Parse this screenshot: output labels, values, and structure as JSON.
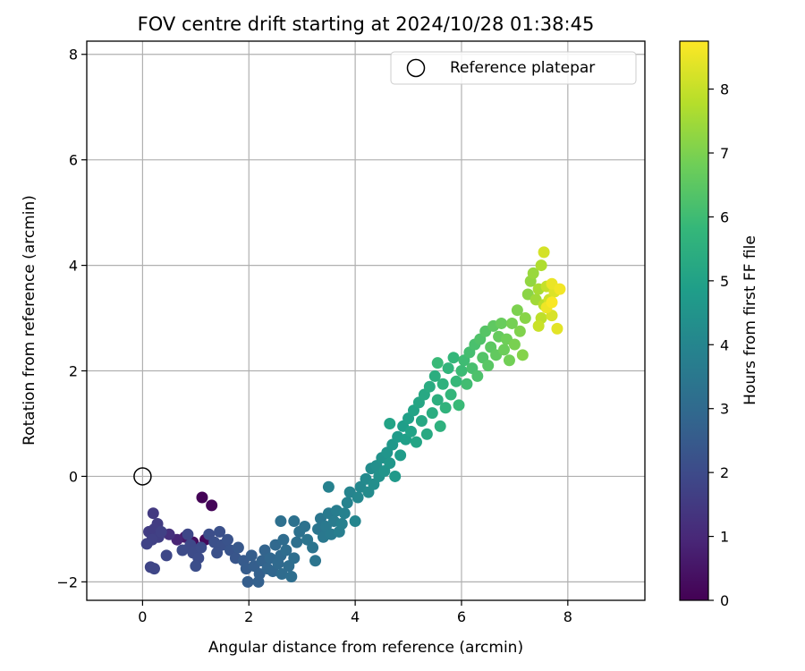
{
  "chart_data": {
    "type": "scatter",
    "title": "FOV centre drift starting at 2024/10/28 01:38:45",
    "xlabel": "Angular distance from reference (arcmin)",
    "ylabel": "Rotation from reference (arcmin)",
    "xlim": [
      -1.05,
      9.45
    ],
    "ylim": [
      -2.35,
      8.25
    ],
    "xticks": [
      0,
      2,
      4,
      6,
      8
    ],
    "yticks": [
      -2,
      0,
      2,
      4,
      6,
      8
    ],
    "grid": true,
    "legend": {
      "position": "top-right",
      "entries": [
        {
          "marker": "open-circle",
          "label": "Reference platepar"
        }
      ]
    },
    "reference_point": {
      "x": 0,
      "y": 0
    },
    "colorbar": {
      "label": "Hours from first FF file",
      "colormap": "viridis",
      "range": [
        0,
        8.75
      ],
      "ticks": [
        0,
        1,
        2,
        3,
        4,
        5,
        6,
        7,
        8
      ],
      "colors": [
        "#440154",
        "#482878",
        "#3e4989",
        "#31688e",
        "#26828e",
        "#1f9e89",
        "#35b779",
        "#6ece58",
        "#b5de2b",
        "#fde725"
      ]
    },
    "points": [
      {
        "x": 1.12,
        "y": -0.4,
        "c": 0.05
      },
      {
        "x": 1.3,
        "y": -0.55,
        "c": 0.1
      },
      {
        "x": 1.18,
        "y": -1.2,
        "c": 0.2
      },
      {
        "x": 0.95,
        "y": -1.25,
        "c": 0.3
      },
      {
        "x": 0.8,
        "y": -1.15,
        "c": 0.6
      },
      {
        "x": 0.65,
        "y": -1.2,
        "c": 0.9
      },
      {
        "x": 0.5,
        "y": -1.1,
        "c": 1.2
      },
      {
        "x": 0.2,
        "y": -0.7,
        "c": 1.5
      },
      {
        "x": 0.28,
        "y": -0.9,
        "c": 1.55
      },
      {
        "x": 0.12,
        "y": -1.05,
        "c": 1.6
      },
      {
        "x": 0.22,
        "y": -1.0,
        "c": 1.6
      },
      {
        "x": 0.3,
        "y": -1.15,
        "c": 1.65
      },
      {
        "x": 0.18,
        "y": -1.2,
        "c": 1.7
      },
      {
        "x": 0.35,
        "y": -1.05,
        "c": 1.7
      },
      {
        "x": 0.08,
        "y": -1.28,
        "c": 1.75
      },
      {
        "x": 0.15,
        "y": -1.72,
        "c": 1.8
      },
      {
        "x": 0.22,
        "y": -1.75,
        "c": 1.85
      },
      {
        "x": 0.45,
        "y": -1.5,
        "c": 1.9
      },
      {
        "x": 0.85,
        "y": -1.1,
        "c": 1.9
      },
      {
        "x": 0.9,
        "y": -1.3,
        "c": 1.95
      },
      {
        "x": 0.75,
        "y": -1.4,
        "c": 2.0
      },
      {
        "x": 0.95,
        "y": -1.45,
        "c": 2.0
      },
      {
        "x": 1.05,
        "y": -1.55,
        "c": 2.05
      },
      {
        "x": 1.1,
        "y": -1.35,
        "c": 2.05
      },
      {
        "x": 1.0,
        "y": -1.7,
        "c": 2.1
      },
      {
        "x": 1.25,
        "y": -1.1,
        "c": 2.1
      },
      {
        "x": 1.35,
        "y": -1.25,
        "c": 2.15
      },
      {
        "x": 1.45,
        "y": -1.05,
        "c": 2.15
      },
      {
        "x": 1.5,
        "y": -1.3,
        "c": 2.2
      },
      {
        "x": 1.4,
        "y": -1.45,
        "c": 2.2
      },
      {
        "x": 1.6,
        "y": -1.2,
        "c": 2.25
      },
      {
        "x": 1.65,
        "y": -1.4,
        "c": 2.3
      },
      {
        "x": 1.75,
        "y": -1.55,
        "c": 2.35
      },
      {
        "x": 1.8,
        "y": -1.35,
        "c": 2.4
      },
      {
        "x": 1.9,
        "y": -1.6,
        "c": 2.5
      },
      {
        "x": 1.95,
        "y": -1.75,
        "c": 2.55
      },
      {
        "x": 1.98,
        "y": -2.0,
        "c": 2.6
      },
      {
        "x": 2.05,
        "y": -1.5,
        "c": 2.6
      },
      {
        "x": 2.1,
        "y": -1.7,
        "c": 2.65
      },
      {
        "x": 2.2,
        "y": -1.85,
        "c": 2.7
      },
      {
        "x": 2.18,
        "y": -2.0,
        "c": 2.7
      },
      {
        "x": 2.25,
        "y": -1.6,
        "c": 2.75
      },
      {
        "x": 2.3,
        "y": -1.4,
        "c": 2.8
      },
      {
        "x": 2.35,
        "y": -1.75,
        "c": 2.85
      },
      {
        "x": 2.4,
        "y": -1.55,
        "c": 2.9
      },
      {
        "x": 2.45,
        "y": -1.8,
        "c": 2.9
      },
      {
        "x": 2.5,
        "y": -1.3,
        "c": 2.95
      },
      {
        "x": 2.55,
        "y": -1.65,
        "c": 3.0
      },
      {
        "x": 2.6,
        "y": -1.5,
        "c": 3.0
      },
      {
        "x": 2.62,
        "y": -1.85,
        "c": 3.05
      },
      {
        "x": 2.65,
        "y": -1.2,
        "c": 3.05
      },
      {
        "x": 2.7,
        "y": -1.4,
        "c": 3.1
      },
      {
        "x": 2.75,
        "y": -1.7,
        "c": 3.1
      },
      {
        "x": 2.8,
        "y": -1.9,
        "c": 3.15
      },
      {
        "x": 2.85,
        "y": -1.55,
        "c": 3.15
      },
      {
        "x": 2.6,
        "y": -0.85,
        "c": 3.2
      },
      {
        "x": 2.9,
        "y": -1.25,
        "c": 3.2
      },
      {
        "x": 2.95,
        "y": -1.05,
        "c": 3.25
      },
      {
        "x": 2.85,
        "y": -0.85,
        "c": 3.25
      },
      {
        "x": 3.05,
        "y": -0.95,
        "c": 3.3
      },
      {
        "x": 3.1,
        "y": -1.2,
        "c": 3.35
      },
      {
        "x": 3.2,
        "y": -1.35,
        "c": 3.35
      },
      {
        "x": 3.25,
        "y": -1.6,
        "c": 3.4
      },
      {
        "x": 3.3,
        "y": -1.0,
        "c": 3.4
      },
      {
        "x": 3.35,
        "y": -0.8,
        "c": 3.45
      },
      {
        "x": 3.4,
        "y": -1.15,
        "c": 3.5
      },
      {
        "x": 3.45,
        "y": -0.95,
        "c": 3.55
      },
      {
        "x": 3.5,
        "y": -0.7,
        "c": 3.6
      },
      {
        "x": 3.55,
        "y": -1.1,
        "c": 3.6
      },
      {
        "x": 3.6,
        "y": -0.85,
        "c": 3.65
      },
      {
        "x": 3.65,
        "y": -0.65,
        "c": 3.7
      },
      {
        "x": 3.7,
        "y": -1.05,
        "c": 3.75
      },
      {
        "x": 3.75,
        "y": -0.9,
        "c": 3.8
      },
      {
        "x": 3.8,
        "y": -0.7,
        "c": 3.85
      },
      {
        "x": 3.5,
        "y": -0.2,
        "c": 3.85
      },
      {
        "x": 3.85,
        "y": -0.5,
        "c": 3.9
      },
      {
        "x": 3.9,
        "y": -0.3,
        "c": 3.95
      },
      {
        "x": 4.0,
        "y": -0.85,
        "c": 4.0
      },
      {
        "x": 4.05,
        "y": -0.4,
        "c": 4.05
      },
      {
        "x": 4.1,
        "y": -0.2,
        "c": 4.1
      },
      {
        "x": 4.2,
        "y": -0.05,
        "c": 4.15
      },
      {
        "x": 4.25,
        "y": -0.3,
        "c": 4.2
      },
      {
        "x": 4.3,
        "y": 0.15,
        "c": 4.25
      },
      {
        "x": 4.35,
        "y": -0.15,
        "c": 4.3
      },
      {
        "x": 4.4,
        "y": 0.2,
        "c": 4.35
      },
      {
        "x": 4.45,
        "y": 0.0,
        "c": 4.4
      },
      {
        "x": 4.5,
        "y": 0.35,
        "c": 4.45
      },
      {
        "x": 4.55,
        "y": 0.1,
        "c": 4.5
      },
      {
        "x": 4.6,
        "y": 0.45,
        "c": 4.55
      },
      {
        "x": 4.65,
        "y": 0.25,
        "c": 4.6
      },
      {
        "x": 4.7,
        "y": 0.6,
        "c": 4.65
      },
      {
        "x": 4.75,
        "y": 0.0,
        "c": 4.7
      },
      {
        "x": 4.8,
        "y": 0.75,
        "c": 4.75
      },
      {
        "x": 4.85,
        "y": 0.4,
        "c": 4.8
      },
      {
        "x": 4.9,
        "y": 0.95,
        "c": 4.85
      },
      {
        "x": 4.95,
        "y": 0.7,
        "c": 4.9
      },
      {
        "x": 5.0,
        "y": 1.1,
        "c": 4.95
      },
      {
        "x": 5.05,
        "y": 0.85,
        "c": 5.0
      },
      {
        "x": 5.1,
        "y": 1.25,
        "c": 5.05
      },
      {
        "x": 4.65,
        "y": 1.0,
        "c": 5.05
      },
      {
        "x": 5.15,
        "y": 0.65,
        "c": 5.1
      },
      {
        "x": 5.2,
        "y": 1.4,
        "c": 5.15
      },
      {
        "x": 5.25,
        "y": 1.05,
        "c": 5.2
      },
      {
        "x": 5.3,
        "y": 1.55,
        "c": 5.25
      },
      {
        "x": 5.35,
        "y": 0.8,
        "c": 5.3
      },
      {
        "x": 5.4,
        "y": 1.7,
        "c": 5.35
      },
      {
        "x": 5.45,
        "y": 1.2,
        "c": 5.4
      },
      {
        "x": 5.5,
        "y": 1.9,
        "c": 5.45
      },
      {
        "x": 5.55,
        "y": 1.45,
        "c": 5.5
      },
      {
        "x": 5.6,
        "y": 0.95,
        "c": 5.55
      },
      {
        "x": 5.65,
        "y": 1.75,
        "c": 5.6
      },
      {
        "x": 5.7,
        "y": 1.3,
        "c": 5.65
      },
      {
        "x": 5.75,
        "y": 2.05,
        "c": 5.7
      },
      {
        "x": 5.8,
        "y": 1.55,
        "c": 5.75
      },
      {
        "x": 5.85,
        "y": 2.25,
        "c": 5.8
      },
      {
        "x": 5.9,
        "y": 1.8,
        "c": 5.85
      },
      {
        "x": 5.95,
        "y": 1.35,
        "c": 5.9
      },
      {
        "x": 5.55,
        "y": 2.15,
        "c": 5.9
      },
      {
        "x": 6.0,
        "y": 2.0,
        "c": 5.95
      },
      {
        "x": 6.05,
        "y": 2.2,
        "c": 6.0
      },
      {
        "x": 6.1,
        "y": 1.75,
        "c": 6.05
      },
      {
        "x": 6.15,
        "y": 2.35,
        "c": 6.1
      },
      {
        "x": 6.2,
        "y": 2.05,
        "c": 6.15
      },
      {
        "x": 6.25,
        "y": 2.5,
        "c": 6.2
      },
      {
        "x": 6.3,
        "y": 1.9,
        "c": 6.25
      },
      {
        "x": 6.35,
        "y": 2.6,
        "c": 6.3
      },
      {
        "x": 6.4,
        "y": 2.25,
        "c": 6.35
      },
      {
        "x": 6.45,
        "y": 2.75,
        "c": 6.4
      },
      {
        "x": 6.5,
        "y": 2.1,
        "c": 6.45
      },
      {
        "x": 6.55,
        "y": 2.45,
        "c": 6.5
      },
      {
        "x": 6.6,
        "y": 2.85,
        "c": 6.55
      },
      {
        "x": 6.65,
        "y": 2.3,
        "c": 6.6
      },
      {
        "x": 6.7,
        "y": 2.65,
        "c": 6.65
      },
      {
        "x": 6.75,
        "y": 2.9,
        "c": 6.7
      },
      {
        "x": 6.8,
        "y": 2.4,
        "c": 6.75
      },
      {
        "x": 6.85,
        "y": 2.6,
        "c": 6.8
      },
      {
        "x": 6.9,
        "y": 2.2,
        "c": 6.85
      },
      {
        "x": 6.95,
        "y": 2.9,
        "c": 6.9
      },
      {
        "x": 7.0,
        "y": 2.5,
        "c": 6.95
      },
      {
        "x": 7.05,
        "y": 3.15,
        "c": 7.0
      },
      {
        "x": 7.1,
        "y": 2.75,
        "c": 7.05
      },
      {
        "x": 7.15,
        "y": 2.3,
        "c": 7.1
      },
      {
        "x": 7.2,
        "y": 3.0,
        "c": 7.15
      },
      {
        "x": 7.25,
        "y": 3.45,
        "c": 7.2
      },
      {
        "x": 7.3,
        "y": 3.7,
        "c": 7.3
      },
      {
        "x": 7.35,
        "y": 3.85,
        "c": 7.4
      },
      {
        "x": 7.4,
        "y": 3.35,
        "c": 7.5
      },
      {
        "x": 7.45,
        "y": 3.55,
        "c": 7.6
      },
      {
        "x": 7.5,
        "y": 4.0,
        "c": 7.7
      },
      {
        "x": 7.55,
        "y": 3.25,
        "c": 7.8
      },
      {
        "x": 7.5,
        "y": 3.0,
        "c": 7.9
      },
      {
        "x": 7.6,
        "y": 3.6,
        "c": 8.0
      },
      {
        "x": 7.45,
        "y": 2.85,
        "c": 8.05
      },
      {
        "x": 7.65,
        "y": 3.35,
        "c": 8.1
      },
      {
        "x": 7.55,
        "y": 4.25,
        "c": 8.2
      },
      {
        "x": 7.7,
        "y": 3.05,
        "c": 8.25
      },
      {
        "x": 7.75,
        "y": 3.5,
        "c": 8.3
      },
      {
        "x": 7.8,
        "y": 2.8,
        "c": 8.4
      },
      {
        "x": 7.7,
        "y": 3.65,
        "c": 8.5
      },
      {
        "x": 7.6,
        "y": 3.2,
        "c": 8.55
      },
      {
        "x": 7.85,
        "y": 3.55,
        "c": 8.6
      },
      {
        "x": 7.7,
        "y": 3.3,
        "c": 8.7
      }
    ]
  }
}
